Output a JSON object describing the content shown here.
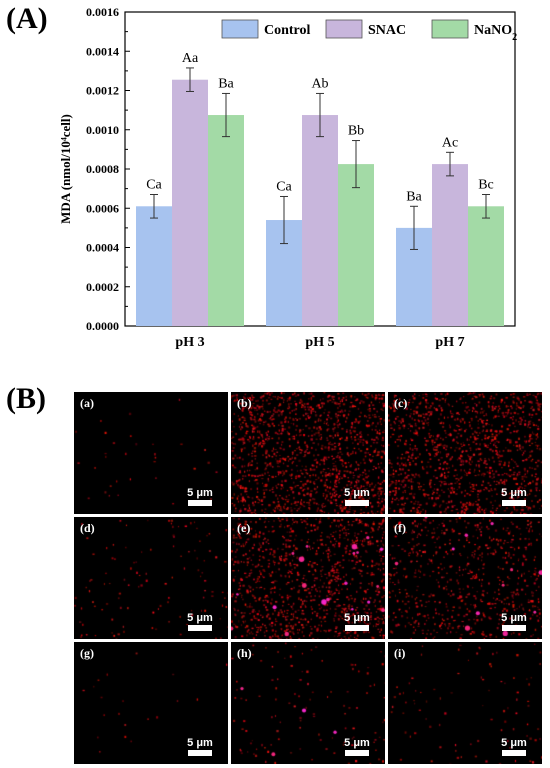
{
  "panel_a_label": "(A)",
  "panel_b_label": "(B)",
  "colors": {
    "Control": "#a7c3ef",
    "SNAC": "#c8b6dc",
    "NaNO2": "#a3daa6"
  },
  "chart_data": {
    "type": "bar",
    "categories": [
      "pH 3",
      "pH 5",
      "pH 7"
    ],
    "series": [
      {
        "name": "Control",
        "values": [
          0.00061,
          0.00054,
          0.0005
        ],
        "errors": [
          6e-05,
          0.00012,
          0.00011
        ],
        "labels": [
          "Ca",
          "Ca",
          "Ba"
        ]
      },
      {
        "name": "SNAC",
        "values": [
          0.001255,
          0.001075,
          0.000825
        ],
        "errors": [
          6e-05,
          0.00011,
          6e-05
        ],
        "labels": [
          "Aa",
          "Ab",
          "Ac"
        ]
      },
      {
        "name": "NaNO2",
        "values": [
          0.001075,
          0.000825,
          0.00061
        ],
        "errors": [
          0.00011,
          0.00012,
          6e-05
        ],
        "labels": [
          "Ba",
          "Bb",
          "Bc"
        ]
      }
    ],
    "legend": [
      "Control",
      "SNAC",
      "NaNO2"
    ],
    "legend_position": "top-right",
    "ylabel": "MDA (nmol/10⁴cell)",
    "ylim": [
      0,
      0.0016
    ],
    "yticks": [
      "0.0000",
      "0.0002",
      "0.0004",
      "0.0006",
      "0.0008",
      "0.0010",
      "0.0012",
      "0.0014",
      "0.0016"
    ],
    "grid": false
  },
  "micrographs": [
    {
      "label": "(a)",
      "scale": "5 μm",
      "density": 0.02,
      "bright": 0
    },
    {
      "label": "(b)",
      "scale": "5 μm",
      "density": 1.0,
      "bright": 0
    },
    {
      "label": "(c)",
      "scale": "5 μm",
      "density": 0.85,
      "bright": 0
    },
    {
      "label": "(d)",
      "scale": "5 μm",
      "density": 0.08,
      "bright": 0
    },
    {
      "label": "(e)",
      "scale": "5 μm",
      "density": 0.75,
      "bright": 0.05
    },
    {
      "label": "(f)",
      "scale": "5 μm",
      "density": 0.45,
      "bright": 0.03
    },
    {
      "label": "(g)",
      "scale": "5 μm",
      "density": 0.01,
      "bright": 0
    },
    {
      "label": "(h)",
      "scale": "5 μm",
      "density": 0.08,
      "bright": 0.01
    },
    {
      "label": "(i)",
      "scale": "5 μm",
      "density": 0.06,
      "bright": 0
    }
  ]
}
